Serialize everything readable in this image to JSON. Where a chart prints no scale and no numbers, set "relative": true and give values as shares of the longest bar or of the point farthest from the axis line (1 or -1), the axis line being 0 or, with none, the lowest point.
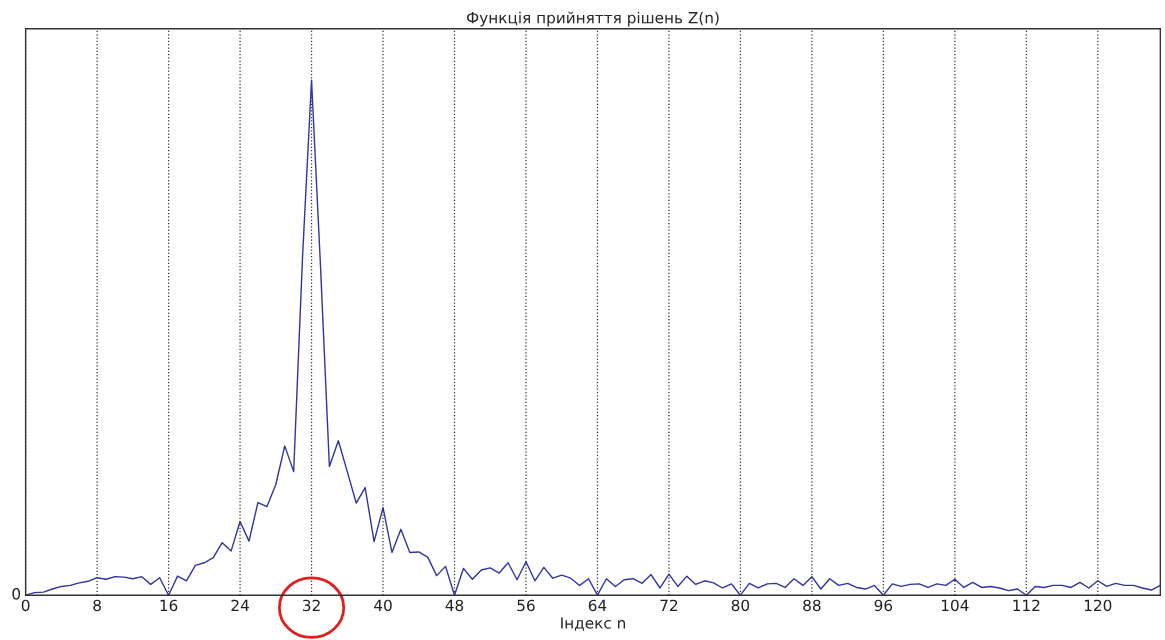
{
  "chart_data": {
    "type": "line",
    "title": "Функція прийняття рішень Z(n)",
    "xlabel": "Індекс n",
    "relative": true,
    "x": [
      0,
      1,
      2,
      3,
      4,
      5,
      6,
      7,
      8,
      9,
      10,
      11,
      12,
      13,
      14,
      15,
      16,
      17,
      18,
      19,
      20,
      21,
      22,
      23,
      24,
      25,
      26,
      27,
      28,
      29,
      30,
      31,
      32,
      33,
      34,
      35,
      36,
      37,
      38,
      39,
      40,
      41,
      42,
      43,
      44,
      45,
      46,
      47,
      48,
      49,
      50,
      51,
      52,
      53,
      54,
      55,
      56,
      57,
      58,
      59,
      60,
      61,
      62,
      63,
      64,
      65,
      66,
      67,
      68,
      69,
      70,
      71,
      72,
      73,
      74,
      75,
      76,
      77,
      78,
      79,
      80,
      81,
      82,
      83,
      84,
      85,
      86,
      87,
      88,
      89,
      90,
      91,
      92,
      93,
      94,
      95,
      96,
      97,
      98,
      99,
      100,
      101,
      102,
      103,
      104,
      105,
      106,
      107,
      108,
      109,
      110,
      111,
      112,
      113,
      114,
      115,
      116,
      117,
      118,
      119,
      120,
      121,
      122,
      123,
      124,
      125,
      126,
      127
    ],
    "series": [
      {
        "color": "#3333a0",
        "values": [
          0,
          0.005,
          0.006,
          0.012,
          0.017,
          0.019,
          0.024,
          0.027,
          0.034,
          0.031,
          0.036,
          0.035,
          0.032,
          0.036,
          0.021,
          0.034,
          0,
          0.037,
          0.028,
          0.058,
          0.063,
          0.073,
          0.102,
          0.086,
          0.143,
          0.105,
          0.18,
          0.172,
          0.215,
          0.29,
          0.24,
          0.66,
          1,
          0.64,
          0.25,
          0.3,
          0.24,
          0.179,
          0.209,
          0.104,
          0.17,
          0.083,
          0.128,
          0.083,
          0.084,
          0.074,
          0.038,
          0.056,
          0,
          0.052,
          0.031,
          0.049,
          0.053,
          0.043,
          0.063,
          0.03,
          0.065,
          0.028,
          0.054,
          0.033,
          0.039,
          0.033,
          0.019,
          0.032,
          0,
          0.032,
          0.017,
          0.03,
          0.032,
          0.023,
          0.04,
          0.014,
          0.041,
          0.017,
          0.037,
          0.021,
          0.028,
          0.024,
          0.014,
          0.022,
          0,
          0.023,
          0.014,
          0.022,
          0.023,
          0.015,
          0.032,
          0.019,
          0.036,
          0.012,
          0.032,
          0.019,
          0.023,
          0.015,
          0.012,
          0.019,
          0,
          0.022,
          0.017,
          0.021,
          0.022,
          0.015,
          0.022,
          0.019,
          0.031,
          0.015,
          0.025,
          0.015,
          0.017,
          0.014,
          0.009,
          0.012,
          0,
          0.017,
          0.015,
          0.019,
          0.019,
          0.015,
          0.025,
          0.014,
          0.028,
          0.017,
          0.023,
          0.019,
          0.019,
          0.014,
          0.01,
          0.019
        ]
      }
    ],
    "xlim": [
      0,
      127
    ],
    "xticks": [
      0,
      8,
      16,
      24,
      32,
      40,
      48,
      56,
      64,
      72,
      80,
      88,
      96,
      104,
      112,
      120
    ],
    "annotations": [
      "0"
    ],
    "grid": "x",
    "line_style": "solid",
    "marker": "none"
  }
}
